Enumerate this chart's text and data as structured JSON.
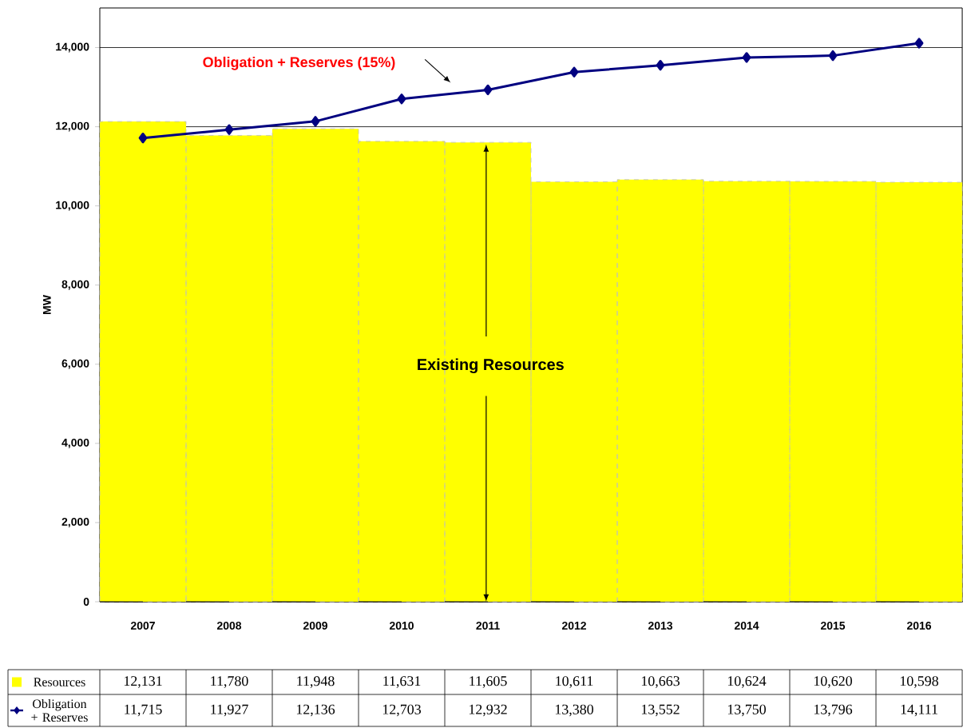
{
  "chart_data": {
    "type": "bar",
    "ylabel": "MW",
    "categories": [
      "2007",
      "2008",
      "2009",
      "2010",
      "2011",
      "2012",
      "2013",
      "2014",
      "2015",
      "2016"
    ],
    "ylim": [
      0,
      15000
    ],
    "yticks": [
      0,
      {
        "value": 2000,
        "label": "2,000"
      },
      {
        "value": 4000,
        "label": "4,000"
      },
      {
        "value": 6000,
        "label": "6,000"
      },
      {
        "value": 8000,
        "label": "8,000"
      },
      {
        "value": 10000,
        "label": "10,000"
      },
      {
        "value": 12000,
        "label": "12,000"
      },
      {
        "value": 14000,
        "label": "14,000"
      }
    ],
    "grid": "y",
    "legend": "bottom left",
    "annotations": [
      "Obligation + Reserves (15%)",
      "Existing Resources"
    ],
    "series": [
      {
        "name": "Resources",
        "color": "#ffff00",
        "values": [
          12131,
          11780,
          11948,
          11631,
          11605,
          10611,
          10663,
          10624,
          10620,
          10598
        ],
        "value_labels": [
          "12,131",
          "11,780",
          "11,948",
          "11,631",
          "11,605",
          "10,611",
          "10,663",
          "10,624",
          "10,620",
          "10,598"
        ]
      },
      {
        "name": "Obligation + Reserves",
        "type": "line",
        "color": "#000080",
        "marker": "diamond",
        "values": [
          11715,
          11927,
          12136,
          12703,
          12932,
          13380,
          13552,
          13750,
          13796,
          14111
        ],
        "value_labels": [
          "11,715",
          "11,927",
          "12,136",
          "12,703",
          "12,932",
          "13,380",
          "13,552",
          "13,750",
          "13,796",
          "14,111"
        ]
      }
    ]
  }
}
